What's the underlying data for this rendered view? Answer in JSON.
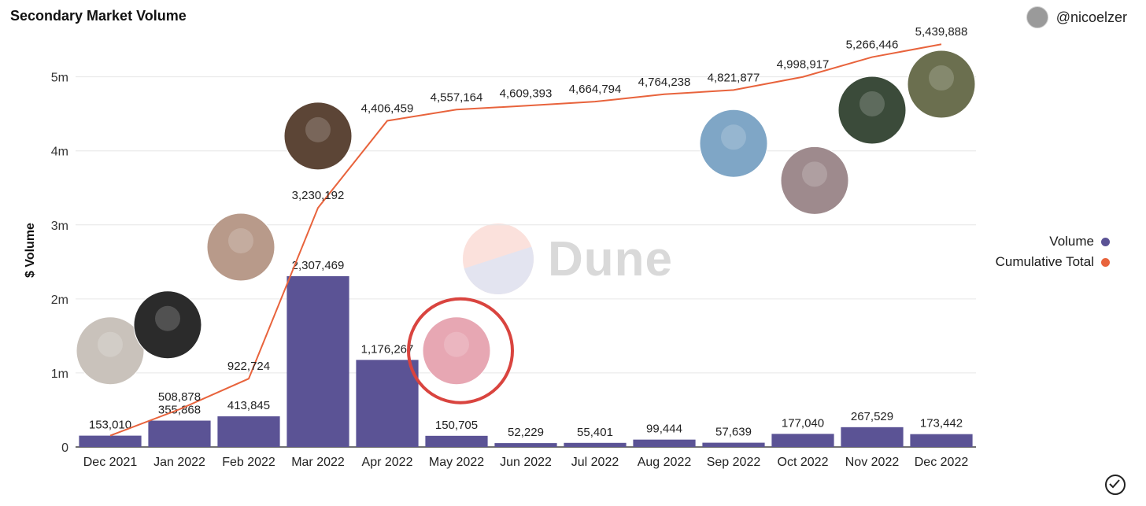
{
  "header": {
    "title": "Secondary Market Volume",
    "author": "@nicoelzer"
  },
  "legend": {
    "volume_label": "Volume",
    "cumulative_label": "Cumulative Total"
  },
  "watermark": {
    "text": "Dune"
  },
  "colors": {
    "volume": "#5b5395",
    "cumulative": "#e8633c",
    "highlight": "#d9443f",
    "grid": "#e6e6e6"
  },
  "chart_data": {
    "type": "bar",
    "categories": [
      "Dec 2021",
      "Jan 2022",
      "Feb 2022",
      "Mar 2022",
      "Apr 2022",
      "May 2022",
      "Jun 2022",
      "Jul 2022",
      "Aug 2022",
      "Sep 2022",
      "Oct 2022",
      "Nov 2022",
      "Dec 2022"
    ],
    "series": [
      {
        "name": "Volume",
        "values": [
          153010,
          355868,
          413845,
          2307469,
          1176267,
          150705,
          52229,
          55401,
          99444,
          57639,
          177040,
          267529,
          173442
        ],
        "labels": [
          "153,010",
          "355,868",
          "413,845",
          "2,307,469",
          "1,176,267",
          "150,705",
          "52,229",
          "55,401",
          "99,444",
          "57,639",
          "177,040",
          "267,529",
          "173,442"
        ]
      },
      {
        "name": "Cumulative Total",
        "type": "line",
        "values": [
          153010,
          508878,
          922724,
          3230192,
          4406459,
          4557164,
          4609393,
          4664794,
          4764238,
          4821877,
          4998917,
          5266446,
          5439888
        ],
        "labels": [
          "153,010",
          "508,878",
          "922,724",
          "3,230,192",
          "4,406,459",
          "4,557,164",
          "4,609,393",
          "4,664,794",
          "4,764,238",
          "4,821,877",
          "4,998,917",
          "5,266,446",
          "5,439,888"
        ]
      }
    ],
    "ylabel": "$ Volume",
    "ylim": [
      0,
      5400000
    ],
    "yticks": [
      0,
      1000000,
      2000000,
      3000000,
      4000000,
      5000000
    ],
    "ytick_labels": [
      "0",
      "1m",
      "2m",
      "3m",
      "4m",
      "5m"
    ],
    "grid": true,
    "legend_position": "right",
    "image_markers": [
      {
        "name": "artist-photo-1",
        "category": "Dec 2021",
        "value": 1300000
      },
      {
        "name": "artist-photo-2",
        "category": "Jan 2022",
        "value": 1650000
      },
      {
        "name": "artist-photo-3",
        "category": "Feb 2022",
        "value": 2700000
      },
      {
        "name": "artist-photo-4",
        "category": "Mar 2022",
        "value": 4200000
      },
      {
        "name": "crypto-artwork",
        "category": "May 2022",
        "value": 1300000,
        "highlighted": true
      },
      {
        "name": "artist-photo-5",
        "category": "Sep 2022",
        "value": 4100000
      },
      {
        "name": "artist-photo-6",
        "category": "Oct 2022",
        "value": 3600000
      },
      {
        "name": "artist-photo-7",
        "category": "Nov 2022",
        "value": 4550000
      },
      {
        "name": "artist-photo-8",
        "category": "Dec 2022",
        "value": 4900000
      }
    ]
  }
}
